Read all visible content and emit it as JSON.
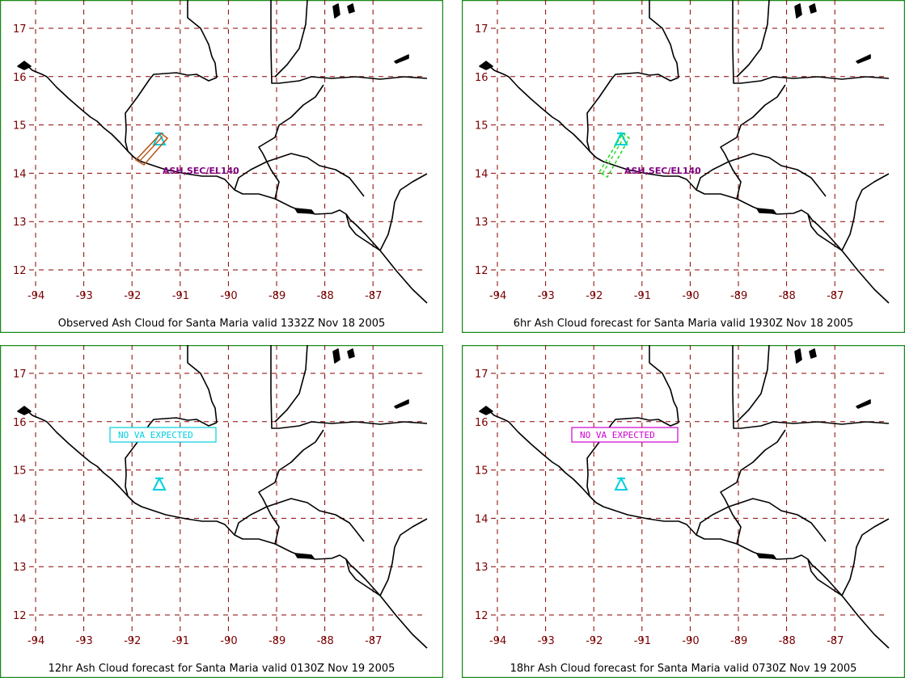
{
  "colors": {
    "frame": "#1a8a1a",
    "grid": "#8b0000",
    "tick": "#7a0000",
    "coast": "#000000",
    "volcano": "#00d0e0",
    "ash_label": "#800080",
    "cloud_observed": "#b85a20",
    "cloud_forecast": "#22dd22"
  },
  "axes": {
    "lon_ticks": [
      "-94",
      "-93",
      "-92",
      "-91",
      "-90",
      "-89",
      "-88",
      "-87"
    ],
    "lat_ticks": [
      "17",
      "16",
      "15",
      "14",
      "13",
      "12"
    ]
  },
  "panels": [
    {
      "caption": "Observed Ash Cloud for Santa  Maria valid 1332Z Nov 18 2005",
      "status": "ash",
      "ash_label": "ASH,SEC/EL140",
      "cloud_color": "#b85a20",
      "cloud_outline": "solid",
      "label_box_color": ""
    },
    {
      "caption": "6hr Ash Cloud forecast for Santa  Maria valid 1930Z Nov 18 2005",
      "status": "ash",
      "ash_label": "ASH,SEC/EL140",
      "cloud_color": "#22dd22",
      "cloud_outline": "dashed",
      "label_box_color": ""
    },
    {
      "caption": "12hr Ash Cloud forecast for Santa  Maria valid 0130Z Nov 19 2005",
      "status": "none",
      "ash_label": "NO VA EXPECTED",
      "cloud_color": "",
      "cloud_outline": "",
      "label_box_color": "#00d0e0"
    },
    {
      "caption": "18hr Ash Cloud forecast for Santa  Maria valid 0730Z Nov 19 2005",
      "status": "none",
      "ash_label": "NO VA EXPECTED",
      "cloud_color": "",
      "cloud_outline": "",
      "label_box_color": "#d000d0"
    }
  ]
}
